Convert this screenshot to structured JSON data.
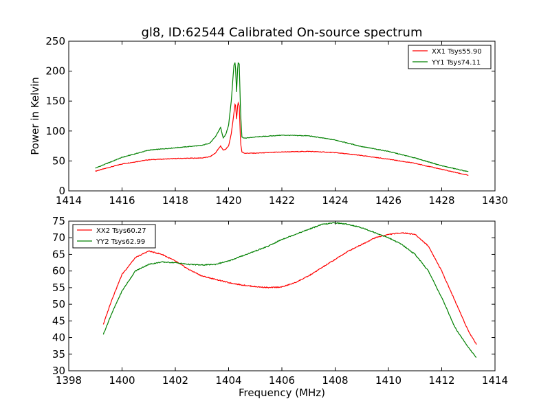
{
  "chart_data": [
    {
      "type": "line",
      "title": "gl8, ID:62544 Calibrated On-source spectrum",
      "xlabel": "",
      "ylabel": "Power in Kelvin",
      "xlim": [
        1414,
        1430
      ],
      "ylim": [
        0,
        250
      ],
      "xticks": [
        "1414",
        "1416",
        "1418",
        "1420",
        "1422",
        "1424",
        "1426",
        "1428",
        "1430"
      ],
      "yticks": [
        "0",
        "50",
        "100",
        "150",
        "200",
        "250"
      ],
      "legend_position": "top-right",
      "series": [
        {
          "name": "XX1 Tsys55.90",
          "color": "#ff0000",
          "x": [
            1415.0,
            1416.0,
            1417.0,
            1418.0,
            1419.0,
            1419.3,
            1419.5,
            1419.7,
            1419.8,
            1419.9,
            1420.0,
            1420.1,
            1420.2,
            1420.25,
            1420.3,
            1420.35,
            1420.4,
            1420.45,
            1420.5,
            1420.6,
            1421.0,
            1422.0,
            1423.0,
            1424.0,
            1425.0,
            1426.0,
            1427.0,
            1428.0,
            1429.0
          ],
          "values": [
            33,
            45,
            52,
            54,
            55,
            57,
            63,
            75,
            68,
            70,
            75,
            95,
            130,
            148,
            120,
            148,
            142,
            80,
            65,
            63,
            63,
            65,
            66,
            64,
            59,
            53,
            46,
            36,
            26
          ]
        },
        {
          "name": "YY1 Tsys74.11",
          "color": "#008000",
          "x": [
            1415.0,
            1416.0,
            1417.0,
            1418.0,
            1419.0,
            1419.3,
            1419.5,
            1419.7,
            1419.8,
            1419.9,
            1420.0,
            1420.1,
            1420.2,
            1420.25,
            1420.3,
            1420.35,
            1420.4,
            1420.45,
            1420.5,
            1420.6,
            1421.0,
            1422.0,
            1423.0,
            1424.0,
            1425.0,
            1426.0,
            1427.0,
            1428.0,
            1429.0
          ],
          "values": [
            38,
            56,
            68,
            72,
            76,
            80,
            90,
            106,
            88,
            95,
            110,
            150,
            210,
            215,
            165,
            214,
            212,
            130,
            90,
            88,
            90,
            93,
            92,
            85,
            74,
            66,
            55,
            42,
            32
          ]
        }
      ]
    },
    {
      "type": "line",
      "title": "",
      "xlabel": "Frequency (MHz)",
      "ylabel": "",
      "xlim": [
        1398,
        1414
      ],
      "ylim": [
        30,
        75
      ],
      "xticks": [
        "1398",
        "1400",
        "1402",
        "1404",
        "1406",
        "1408",
        "1410",
        "1412",
        "1414"
      ],
      "yticks": [
        "30",
        "35",
        "40",
        "45",
        "50",
        "55",
        "60",
        "65",
        "70",
        "75"
      ],
      "legend_position": "top-left",
      "series": [
        {
          "name": "XX2 Tsys60.27",
          "color": "#ff0000",
          "x": [
            1399.3,
            1399.6,
            1400.0,
            1400.5,
            1401.0,
            1401.5,
            1402.0,
            1402.5,
            1403.0,
            1403.5,
            1404.0,
            1404.5,
            1405.0,
            1405.5,
            1406.0,
            1406.5,
            1407.0,
            1407.5,
            1408.0,
            1408.5,
            1409.0,
            1409.5,
            1410.0,
            1410.5,
            1411.0,
            1411.5,
            1412.0,
            1412.5,
            1413.0,
            1413.3
          ],
          "values": [
            44,
            51,
            59,
            64,
            66,
            65,
            63,
            60.5,
            58.5,
            57.5,
            56.5,
            55.8,
            55.3,
            55,
            55.2,
            56.5,
            58.5,
            61,
            63.5,
            66,
            68,
            70,
            71,
            71.5,
            71,
            67.5,
            60,
            51,
            42,
            38
          ]
        },
        {
          "name": "YY2 Tsys62.99",
          "color": "#008000",
          "x": [
            1399.3,
            1399.6,
            1400.0,
            1400.5,
            1401.0,
            1401.5,
            1402.0,
            1402.5,
            1403.0,
            1403.5,
            1404.0,
            1404.5,
            1405.0,
            1405.5,
            1406.0,
            1406.5,
            1407.0,
            1407.5,
            1408.0,
            1408.5,
            1409.0,
            1409.5,
            1410.0,
            1410.5,
            1411.0,
            1411.5,
            1412.0,
            1412.5,
            1413.0,
            1413.3
          ],
          "values": [
            41,
            47,
            54,
            60,
            62,
            62.7,
            62.5,
            62,
            61.8,
            62,
            63,
            64.5,
            66,
            67.5,
            69.5,
            71,
            72.5,
            74,
            74.5,
            74,
            73,
            71.5,
            70,
            68,
            65,
            60,
            52,
            43,
            37,
            34
          ]
        }
      ]
    }
  ]
}
